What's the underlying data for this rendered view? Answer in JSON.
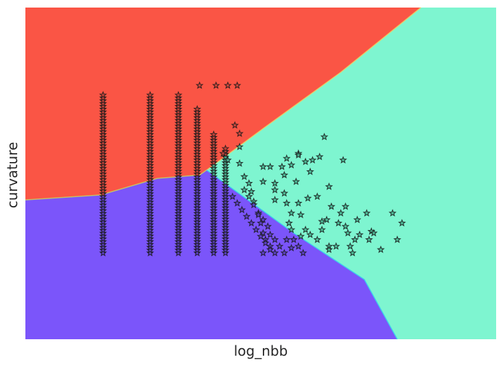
{
  "chart_data": {
    "type": "scatter",
    "title": "",
    "xlabel": "log_nbb",
    "ylabel": "curvature",
    "xlim": [
      0,
      100
    ],
    "ylim": [
      0,
      100
    ],
    "grid": false,
    "legend": "none",
    "regions": [
      {
        "class": "red",
        "color": "#fa5545"
      },
      {
        "class": "purple",
        "color": "#7b55fa"
      },
      {
        "class": "green",
        "color": "#7ef5d0"
      }
    ],
    "region_colors": {
      "red": "#fa5545",
      "purple": "#7b55fa",
      "green": "#7ef5d0"
    },
    "boundaries": {
      "red_purple": [
        [
          0,
          42
        ],
        [
          16,
          43.5
        ],
        [
          28,
          48.5
        ],
        [
          37,
          49.5
        ],
        [
          38.5,
          51
        ]
      ],
      "red_green": [
        [
          38.5,
          51
        ],
        [
          50,
          63
        ],
        [
          67,
          80.5
        ],
        [
          84,
          100
        ]
      ],
      "purple_green": [
        [
          38.5,
          51
        ],
        [
          57,
          32
        ],
        [
          72,
          18
        ],
        [
          79,
          0
        ]
      ]
    },
    "marker": "star",
    "point_colors": {
      "red": "#c8453c",
      "purple": "#5b3fc0",
      "green": "#47b592"
    },
    "columns": [
      {
        "x": 16.5,
        "y": [
          26,
          74
        ]
      },
      {
        "x": 26.5,
        "y": [
          26,
          74
        ]
      },
      {
        "x": 32.5,
        "y": [
          26,
          74
        ]
      },
      {
        "x": 36.5,
        "y": [
          26,
          70
        ]
      },
      {
        "x": 40.0,
        "y": [
          26,
          62
        ]
      },
      {
        "x": 42.5,
        "y": [
          26,
          58
        ]
      }
    ],
    "points": [
      [
        37.0,
        76.5
      ],
      [
        40.5,
        76.5
      ],
      [
        43.0,
        76.5
      ],
      [
        45.0,
        76.5
      ],
      [
        44.5,
        64.5
      ],
      [
        45.5,
        62
      ],
      [
        45.5,
        58
      ],
      [
        42.0,
        56
      ],
      [
        43.0,
        54
      ],
      [
        45.5,
        53
      ],
      [
        46.5,
        49
      ],
      [
        47.5,
        47
      ],
      [
        48.0,
        44.5
      ],
      [
        48.5,
        41.5
      ],
      [
        49.5,
        38
      ],
      [
        50.5,
        36
      ],
      [
        51.5,
        34
      ],
      [
        52.0,
        31.5
      ],
      [
        53.0,
        30
      ],
      [
        54.0,
        28
      ],
      [
        55.0,
        26
      ],
      [
        56.5,
        27.5
      ],
      [
        46.5,
        45
      ],
      [
        47.5,
        43
      ],
      [
        48.5,
        40.5
      ],
      [
        49.5,
        37.5
      ],
      [
        50.0,
        35
      ],
      [
        50.5,
        32
      ],
      [
        51.0,
        30
      ],
      [
        52.0,
        28
      ],
      [
        53.0,
        26
      ],
      [
        44.0,
        43
      ],
      [
        45.0,
        41
      ],
      [
        46.0,
        39
      ],
      [
        47.0,
        37
      ],
      [
        48.0,
        35
      ],
      [
        49.0,
        33
      ],
      [
        50.0,
        31
      ],
      [
        51.0,
        29
      ],
      [
        52.0,
        27
      ],
      [
        50.5,
        26
      ],
      [
        50.5,
        52
      ],
      [
        50.5,
        47.5
      ],
      [
        52.0,
        52
      ],
      [
        53.0,
        47
      ],
      [
        53.0,
        45
      ],
      [
        53.0,
        42
      ],
      [
        54.5,
        52
      ],
      [
        55.5,
        54.5
      ],
      [
        55.0,
        49.5
      ],
      [
        55.0,
        44
      ],
      [
        55.5,
        41
      ],
      [
        56.5,
        38
      ],
      [
        56.0,
        35
      ],
      [
        56.5,
        33
      ],
      [
        55.5,
        30
      ],
      [
        57.0,
        30
      ],
      [
        58.0,
        28
      ],
      [
        58.5,
        31
      ],
      [
        59.0,
        26
      ],
      [
        57.5,
        47.5
      ],
      [
        58.0,
        41
      ],
      [
        58.5,
        37.5
      ],
      [
        59.5,
        33
      ],
      [
        60.5,
        31.5
      ],
      [
        60.0,
        42.5
      ],
      [
        61.0,
        54
      ],
      [
        60.5,
        50.5
      ],
      [
        62.0,
        43
      ],
      [
        63.0,
        35.5
      ],
      [
        64.0,
        36
      ],
      [
        63.0,
        33
      ],
      [
        62.0,
        30
      ],
      [
        64.5,
        28
      ],
      [
        64.5,
        46
      ],
      [
        65.0,
        40
      ],
      [
        67.0,
        38
      ],
      [
        64.5,
        27
      ],
      [
        66.5,
        35
      ],
      [
        63.5,
        61
      ],
      [
        56.5,
        52.5
      ],
      [
        58.0,
        56
      ],
      [
        59.5,
        53.5
      ],
      [
        62.5,
        55
      ],
      [
        58.0,
        55.5
      ],
      [
        67.5,
        54
      ],
      [
        68.0,
        40
      ],
      [
        68.0,
        34
      ],
      [
        68.5,
        32
      ],
      [
        66.0,
        28
      ],
      [
        70.0,
        30
      ],
      [
        72.5,
        38
      ],
      [
        73.5,
        32.5
      ],
      [
        75.5,
        27
      ],
      [
        71.0,
        31.5
      ],
      [
        74.0,
        32
      ],
      [
        70.5,
        36
      ],
      [
        78.0,
        38
      ],
      [
        80.0,
        35
      ],
      [
        79.0,
        30
      ],
      [
        73.0,
        30
      ],
      [
        69.0,
        28
      ],
      [
        69.5,
        26
      ]
    ]
  }
}
